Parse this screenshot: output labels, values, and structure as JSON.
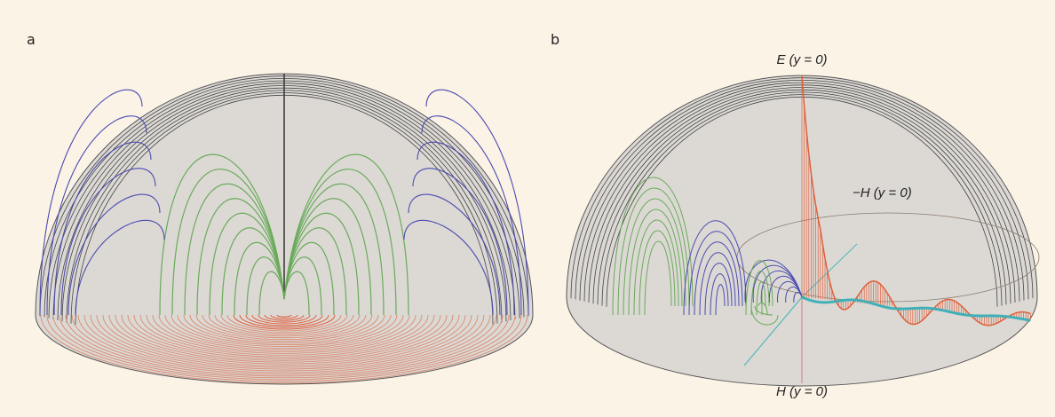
{
  "panels": [
    {
      "label": "a"
    },
    {
      "label": "b",
      "annotations": [
        "E (y = 0)",
        "−H (y = 0)",
        "H (y = 0)"
      ]
    }
  ]
}
